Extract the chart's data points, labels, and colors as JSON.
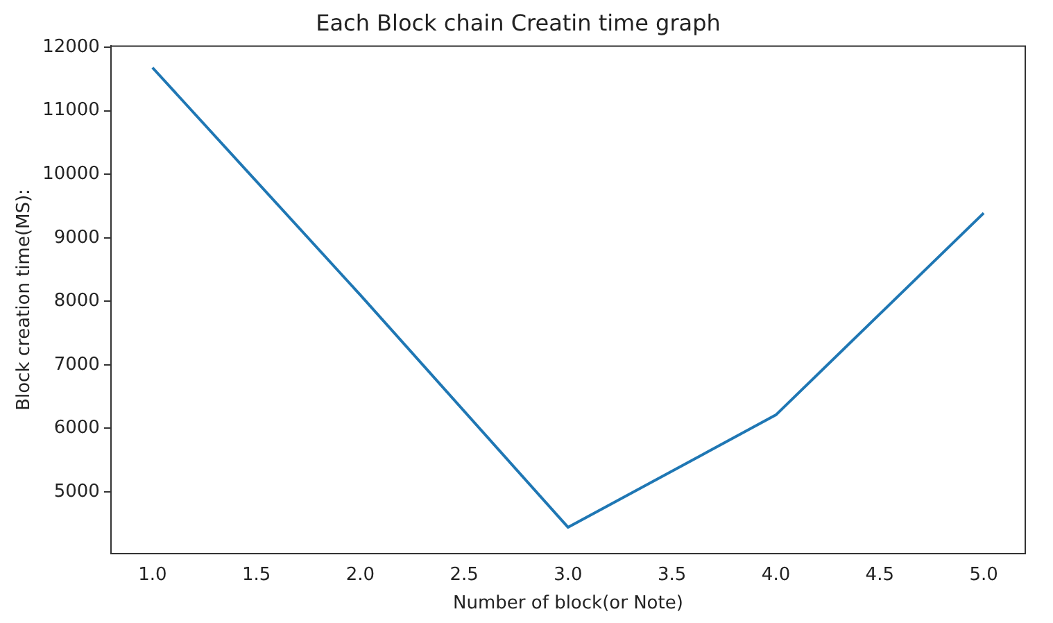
{
  "chart_data": {
    "type": "line",
    "title": "Each Block chain Creatin time graph",
    "xlabel": "Number of block(or Note)",
    "ylabel": "Block creation time(MS):",
    "x": [
      1,
      2,
      3,
      4,
      5
    ],
    "series": [
      {
        "color": "#1f77b4",
        "values": [
          11680,
          8100,
          4440,
          6210,
          9390
        ]
      }
    ],
    "xlim": [
      0.8,
      5.2
    ],
    "xticks": [
      {
        "value": 1,
        "label": "1.0"
      },
      {
        "value": 1.5,
        "label": "1.5"
      },
      {
        "value": 2,
        "label": "2.0"
      },
      {
        "value": 2.5,
        "label": "2.5"
      },
      {
        "value": 3,
        "label": "3.0"
      },
      {
        "value": 3.5,
        "label": "3.5"
      },
      {
        "value": 4,
        "label": "4.0"
      },
      {
        "value": 4.5,
        "label": "4.5"
      },
      {
        "value": 5,
        "label": "5.0"
      }
    ],
    "ylim": [
      4030,
      12020
    ],
    "yticks": [
      5000,
      6000,
      7000,
      8000,
      9000,
      10000,
      11000,
      12000
    ],
    "grid": false,
    "legend": false,
    "marker": "none",
    "line_style": "solid"
  }
}
